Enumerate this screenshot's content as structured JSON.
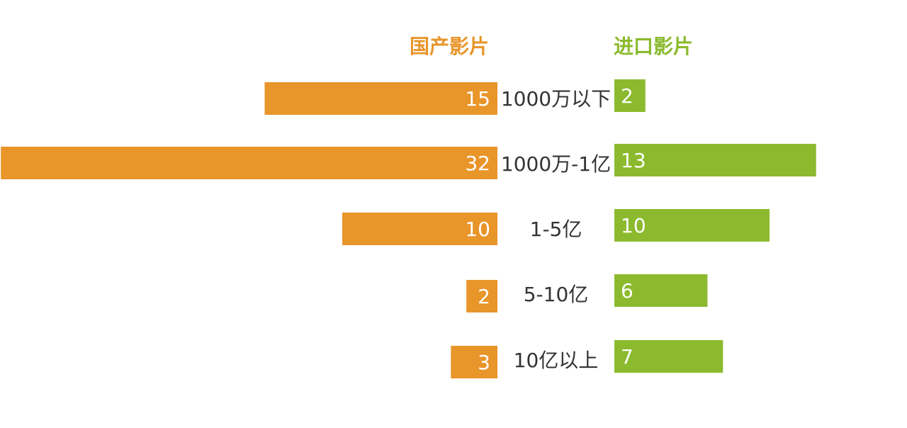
{
  "chart_data": {
    "type": "bar",
    "orientation": "horizontal-diverging",
    "categories": [
      "1000万以下",
      "1000万-1亿",
      "1-5亿",
      "5-10亿",
      "10亿以上"
    ],
    "series": [
      {
        "name": "国产影片",
        "values": [
          15,
          32,
          10,
          2,
          3
        ],
        "color": "#E8952A",
        "direction": "left"
      },
      {
        "name": "进口影片",
        "values": [
          2,
          13,
          10,
          6,
          7
        ],
        "color": "#8BBA2E",
        "direction": "right"
      }
    ],
    "title": "",
    "xlabel": "",
    "ylabel": "",
    "grid": false,
    "legend": "top-center"
  }
}
